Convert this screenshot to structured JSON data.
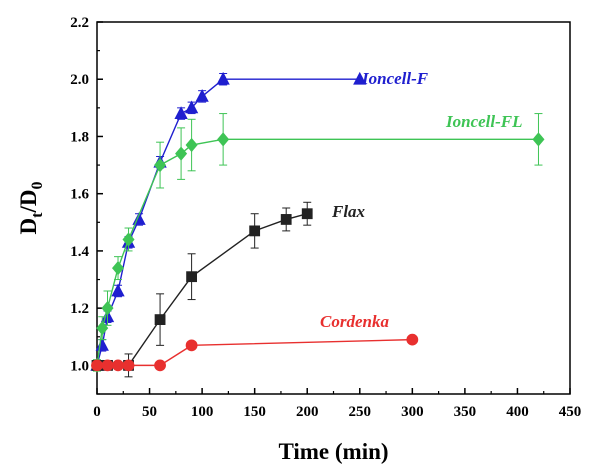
{
  "chart_data": {
    "type": "line",
    "title": "",
    "xlabel": "Time (min)",
    "ylabel": {
      "main": "D",
      "sub1": "t",
      "sep": "/D",
      "sub2": "0"
    },
    "xlim": [
      0,
      450
    ],
    "ylim": [
      0.9,
      2.2
    ],
    "x_ticks": [
      0,
      50,
      100,
      150,
      200,
      250,
      300,
      350,
      400,
      450
    ],
    "y_ticks": [
      "1.0",
      "1.2",
      "1.4",
      "1.6",
      "1.8",
      "2.0",
      "2.2"
    ],
    "grid": false,
    "series": [
      {
        "name": "Ioncell-F",
        "color": "#1f1fcf",
        "marker": "triangle",
        "x": [
          0,
          5,
          10,
          20,
          30,
          40,
          60,
          80,
          90,
          100,
          120,
          250
        ],
        "y": [
          1.0,
          1.07,
          1.17,
          1.26,
          1.43,
          1.51,
          1.71,
          1.88,
          1.9,
          1.94,
          2.0,
          2.0
        ],
        "errors": [
          0.01,
          0.02,
          0.02,
          0.02,
          0.02,
          0.02,
          0.02,
          0.02,
          0.02,
          0.02,
          0.02,
          0
        ]
      },
      {
        "name": "Ioncell-FL",
        "color": "#3ec455",
        "marker": "diamond",
        "x": [
          0,
          5,
          10,
          20,
          30,
          60,
          80,
          90,
          120,
          420
        ],
        "y": [
          1.0,
          1.13,
          1.2,
          1.34,
          1.44,
          1.7,
          1.74,
          1.77,
          1.79,
          1.79
        ],
        "errors": [
          0.02,
          0.04,
          0.06,
          0.04,
          0.04,
          0.08,
          0.09,
          0.09,
          0.09,
          0.09
        ]
      },
      {
        "name": "Flax",
        "color": "#222222",
        "marker": "square",
        "x": [
          0,
          10,
          30,
          60,
          90,
          150,
          180,
          200
        ],
        "y": [
          1.0,
          1.0,
          1.0,
          1.16,
          1.31,
          1.47,
          1.51,
          1.53
        ],
        "errors": [
          0.01,
          0.01,
          0.04,
          0.09,
          0.08,
          0.06,
          0.04,
          0.04
        ]
      },
      {
        "name": "Cordenka",
        "color": "#e8302f",
        "marker": "circle",
        "x": [
          0,
          10,
          20,
          30,
          60,
          90,
          300
        ],
        "y": [
          1.0,
          1.0,
          1.0,
          1.0,
          1.0,
          1.07,
          1.09
        ],
        "errors": [
          0,
          0,
          0,
          0,
          0,
          0,
          0
        ]
      }
    ]
  }
}
